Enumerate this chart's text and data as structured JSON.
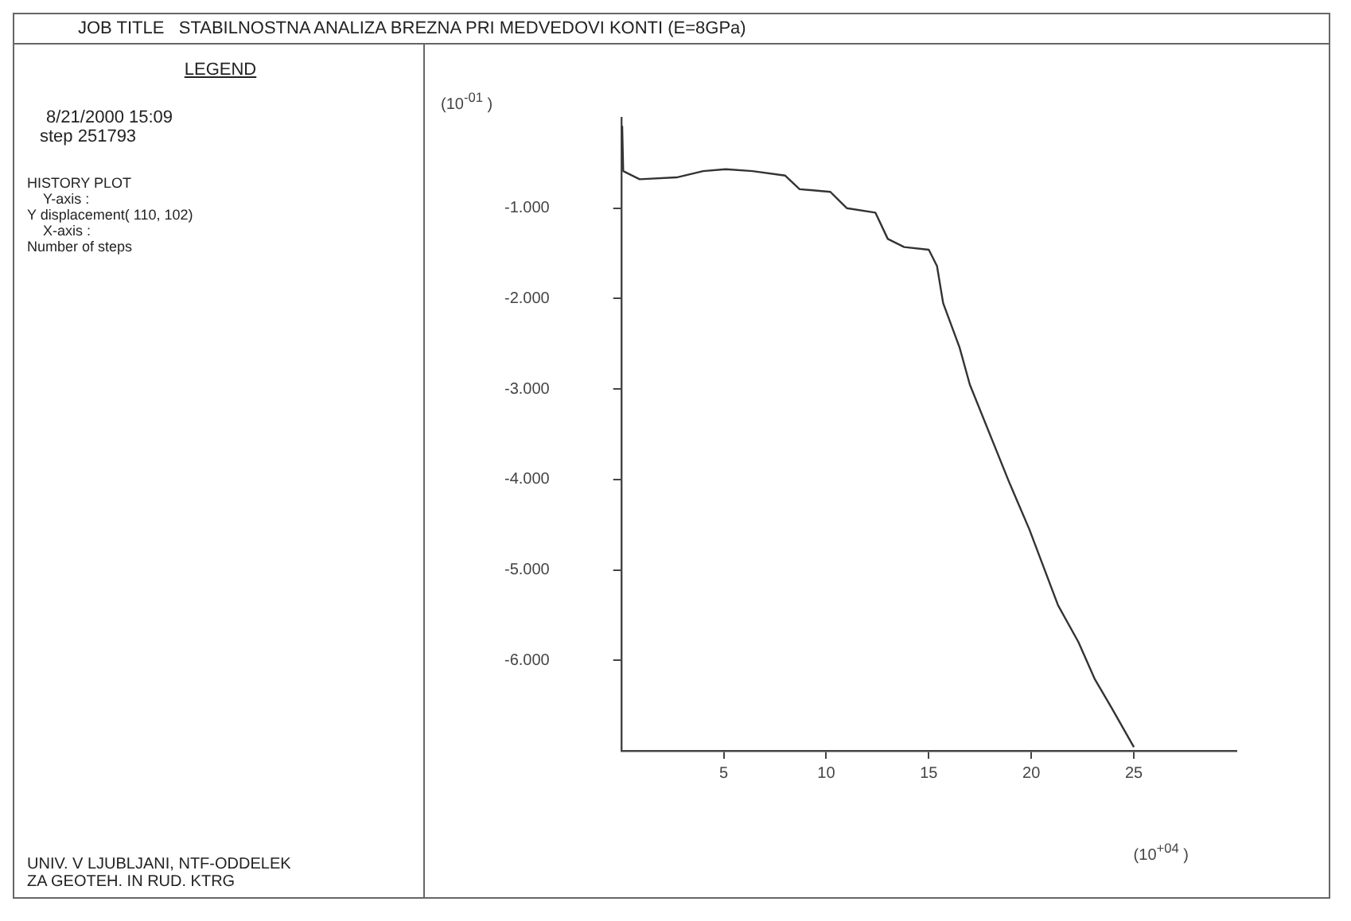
{
  "chart_data": {
    "type": "line",
    "title": "JOB TITLE   STABILNOSTNA ANALIZA BREZNA PRI MEDVEDOVI KONTI (E=8GPa)",
    "xlabel": "(10$^{+04}$ )",
    "ylabel": "(10$^{-01}$ )",
    "annotations": [
      "LEGEND",
      "8/21/2000  15:09",
      "step 251793",
      "HISTORY PLOT",
      "Y-axis :",
      "Y displacement( 110, 102)",
      "X-axis :",
      "Number of steps",
      "UNIV. V LJUBLJANI, NTF-ODDELEK",
      "ZA GEOTEH. IN RUD. KTRG"
    ],
    "series": [
      {
        "color": "#333333",
        "x": [
          0.05,
          0.1,
          0.9,
          2.7,
          4.0,
          5.1,
          6.4,
          8.0,
          8.7,
          10.2,
          11.0,
          12.4,
          13.0,
          13.8,
          15.0,
          15.4,
          15.7,
          16.5,
          17.0,
          18.9,
          19.9,
          21.3,
          22.3,
          23.1,
          23.9,
          25.0
        ],
        "values": [
          -0.09,
          -0.59,
          -0.68,
          -0.66,
          -0.59,
          -0.57,
          -0.59,
          -0.64,
          -0.79,
          -0.82,
          -1.0,
          -1.05,
          -1.34,
          -1.43,
          -1.46,
          -1.64,
          -2.05,
          -2.54,
          -2.95,
          -4.02,
          -4.55,
          -5.39,
          -5.8,
          -6.21,
          -6.52,
          -6.96
        ]
      }
    ],
    "xlim": [
      0,
      30
    ],
    "xticks": [
      5,
      10,
      15,
      20,
      25
    ],
    "ylim": [
      -7,
      0
    ],
    "yticks": [
      {
        "value": -1,
        "label": "-1.000"
      },
      {
        "value": -2,
        "label": "-2.000"
      },
      {
        "value": -3,
        "label": "-3.000"
      },
      {
        "value": -4,
        "label": "-4.000"
      },
      {
        "value": -5,
        "label": "-5.000"
      },
      {
        "value": -6,
        "label": "-6.000"
      }
    ],
    "grid": false,
    "legend": false,
    "marker": "none",
    "line_style": "solid"
  }
}
